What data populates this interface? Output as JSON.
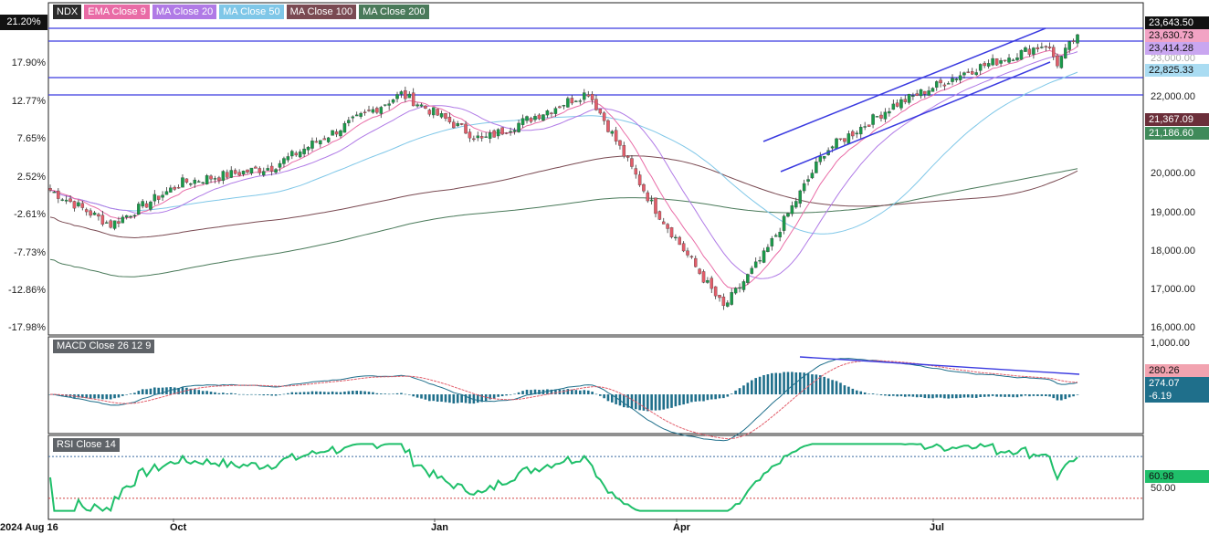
{
  "legend": [
    {
      "label": "NDX",
      "color": "#2b2b2b"
    },
    {
      "label": "EMA Close 9",
      "color": "#e96ba6"
    },
    {
      "label": "MA Close 20",
      "color": "#b07ae6"
    },
    {
      "label": "MA Close 50",
      "color": "#7fc7e8"
    },
    {
      "label": "MA Close 100",
      "color": "#7a4a52"
    },
    {
      "label": "MA Close 200",
      "color": "#4a7a5a"
    }
  ],
  "left_axis": {
    "top_badge": "21.20%",
    "ticks": [
      "17.90%",
      "12.77%",
      "7.65%",
      "2.52%",
      "-2.61%",
      "-7.73%",
      "-12.86%",
      "-17.98%"
    ]
  },
  "right_axis": {
    "ticks": [
      "22,000.00",
      "21,000.00",
      "20,000.00",
      "19,000.00",
      "18,000.00",
      "17,000.00",
      "16,000.00"
    ],
    "ticks_faded": [
      "23,000.00"
    ],
    "badges": [
      {
        "text": "23,643.50",
        "bg": "#111111",
        "fg": "#ffffff"
      },
      {
        "text": "23,630.73",
        "bg": "#f2a3c4",
        "fg": "#111111"
      },
      {
        "text": "23,414.28",
        "bg": "#c9a6f0",
        "fg": "#111111"
      },
      {
        "text": "22,825.33",
        "bg": "#aadcf2",
        "fg": "#111111"
      },
      {
        "text": "21,367.09",
        "bg": "#6b2f3a",
        "fg": "#ffffff"
      },
      {
        "text": "21,186.60",
        "bg": "#3f8a5a",
        "fg": "#ffffff"
      }
    ]
  },
  "macd": {
    "label": "MACD Close 26 12 9",
    "axis_top": "1,000.00",
    "badges": [
      {
        "text": "280.26",
        "bg": "#f2a3b0",
        "fg": "#111111"
      },
      {
        "text": "274.07",
        "bg": "#1f6f8b",
        "fg": "#ffffff"
      },
      {
        "text": "-6.19",
        "bg": "#1f6f8b",
        "fg": "#ffffff"
      }
    ]
  },
  "rsi": {
    "label": "RSI Close 14",
    "badge": {
      "text": "60.98",
      "bg": "#1fbf6a",
      "fg": "#111111"
    },
    "axis_label": "50.00"
  },
  "x_axis": {
    "labels": [
      "2024 Aug 16",
      "Oct",
      "Jan",
      "Apr",
      "Jul"
    ]
  },
  "colors": {
    "up": "#1a9a4a",
    "down": "#e25d6a",
    "wick": "#333333",
    "hline": "#3a3ae0",
    "macd_line": "#1f6f8b",
    "signal_line": "#e25d6a",
    "rsi_line": "#1fbf6a"
  },
  "chart_data": {
    "type": "candlestick",
    "title": "NDX",
    "x_range": [
      "2024-08-16",
      "2025-08-08"
    ],
    "y_range": [
      16000,
      24000
    ],
    "price_path": [
      {
        "date": "2024-08-16",
        "close": 19600
      },
      {
        "date": "2024-09-06",
        "close": 18700
      },
      {
        "date": "2024-10-01",
        "close": 19800
      },
      {
        "date": "2024-11-01",
        "close": 20200
      },
      {
        "date": "2024-12-16",
        "close": 22100
      },
      {
        "date": "2025-01-13",
        "close": 20900
      },
      {
        "date": "2025-02-19",
        "close": 22150
      },
      {
        "date": "2025-03-13",
        "close": 19250
      },
      {
        "date": "2025-04-07",
        "close": 16550
      },
      {
        "date": "2025-04-21",
        "close": 17900
      },
      {
        "date": "2025-05-12",
        "close": 20600
      },
      {
        "date": "2025-06-05",
        "close": 21800
      },
      {
        "date": "2025-07-01",
        "close": 22700
      },
      {
        "date": "2025-07-28",
        "close": 23400
      },
      {
        "date": "2025-08-01",
        "close": 22900
      },
      {
        "date": "2025-08-08",
        "close": 23643.5
      }
    ],
    "horizontal_lines": [
      23643.5,
      23414.28,
      22825.33,
      22200
    ],
    "overlays": [
      {
        "name": "EMA Close 9",
        "last": 23630.73
      },
      {
        "name": "MA Close 20",
        "last": 23414.28
      },
      {
        "name": "MA Close 50",
        "last": 22825.33
      },
      {
        "name": "MA Close 100",
        "last": 21367.09
      },
      {
        "name": "MA Close 200",
        "last": 21186.6
      }
    ],
    "macd": {
      "macd": 274.07,
      "signal": 280.26,
      "histogram": -6.19
    },
    "rsi": {
      "last": 60.98,
      "levels": [
        70,
        30
      ]
    }
  }
}
